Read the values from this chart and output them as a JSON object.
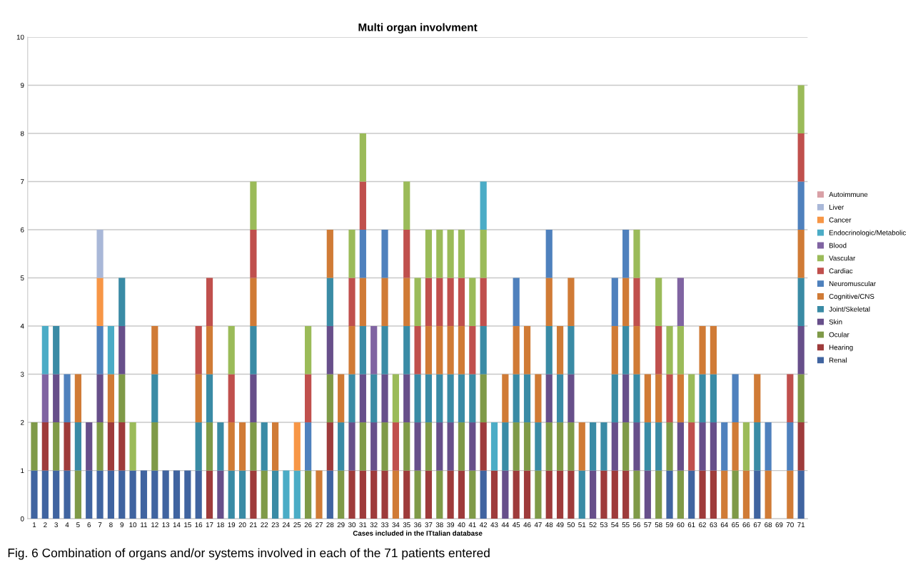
{
  "chart_data": {
    "type": "bar",
    "stacked": true,
    "title": "Multi organ involvment",
    "xlabel": "Cases included in the ITtalian database",
    "categories": [
      "1",
      "2",
      "3",
      "4",
      "5",
      "6",
      "7",
      "8",
      "9",
      "10",
      "11",
      "12",
      "13",
      "14",
      "15",
      "16",
      "17",
      "18",
      "19",
      "20",
      "21",
      "22",
      "23",
      "24",
      "25",
      "26",
      "27",
      "28",
      "29",
      "30",
      "31",
      "32",
      "33",
      "34",
      "35",
      "36",
      "37",
      "38",
      "39",
      "40",
      "41",
      "42",
      "43",
      "44",
      "45",
      "46",
      "47",
      "48",
      "49",
      "50",
      "51",
      "52",
      "53",
      "54",
      "55",
      "56",
      "57",
      "58",
      "59",
      "60",
      "61",
      "62",
      "63",
      "64",
      "65",
      "66",
      "67",
      "68",
      "69",
      "70",
      "71"
    ],
    "ylim": [
      0,
      10
    ],
    "yticks": [
      0,
      1,
      2,
      3,
      4,
      5,
      6,
      7,
      8,
      9,
      10
    ],
    "grid": "y",
    "legend": "right",
    "series": [
      {
        "name": "Renal",
        "color": "#4064a0",
        "values": [
          1,
          1,
          1,
          1,
          0,
          1,
          1,
          1,
          1,
          1,
          1,
          1,
          1,
          1,
          1,
          1,
          0,
          0,
          0,
          0,
          0,
          0,
          0,
          0,
          0,
          0,
          0,
          1,
          0,
          0,
          0,
          0,
          0,
          0,
          0,
          0,
          0,
          0,
          0,
          0,
          0,
          1,
          0,
          0,
          0,
          0,
          0,
          0,
          0,
          0,
          0,
          0,
          0,
          0,
          0,
          0,
          0,
          0,
          1,
          0,
          1,
          0,
          0,
          0,
          0,
          0,
          1,
          0,
          0,
          0,
          1
        ]
      },
      {
        "name": "Hearing",
        "color": "#9e3b3b",
        "values": [
          0,
          1,
          0,
          1,
          0,
          0,
          0,
          1,
          1,
          0,
          0,
          0,
          0,
          0,
          0,
          0,
          1,
          0,
          0,
          0,
          1,
          0,
          0,
          0,
          0,
          0,
          0,
          1,
          0,
          1,
          1,
          1,
          1,
          0,
          1,
          0,
          1,
          0,
          1,
          1,
          0,
          1,
          1,
          0,
          1,
          1,
          0,
          1,
          1,
          1,
          0,
          0,
          1,
          1,
          1,
          0,
          0,
          0,
          0,
          0,
          0,
          1,
          1,
          0,
          0,
          0,
          0,
          0,
          0,
          0,
          1
        ]
      },
      {
        "name": "Ocular",
        "color": "#7f9a48",
        "values": [
          1,
          0,
          1,
          0,
          1,
          0,
          1,
          0,
          1,
          0,
          0,
          1,
          0,
          0,
          0,
          0,
          1,
          0,
          0,
          0,
          1,
          1,
          0,
          0,
          0,
          1,
          0,
          1,
          1,
          0,
          1,
          0,
          1,
          0,
          1,
          1,
          1,
          1,
          0,
          1,
          1,
          1,
          0,
          0,
          1,
          1,
          1,
          1,
          1,
          1,
          0,
          0,
          0,
          0,
          1,
          1,
          0,
          1,
          1,
          1,
          0,
          0,
          0,
          0,
          1,
          0,
          0,
          0,
          0,
          0,
          1
        ]
      },
      {
        "name": "Skin",
        "color": "#674f8a",
        "values": [
          0,
          0,
          1,
          0,
          0,
          1,
          1,
          0,
          1,
          0,
          0,
          0,
          0,
          0,
          0,
          0,
          0,
          1,
          0,
          0,
          1,
          0,
          0,
          0,
          0,
          0,
          0,
          1,
          0,
          1,
          1,
          1,
          1,
          0,
          1,
          1,
          0,
          1,
          1,
          0,
          1,
          0,
          0,
          1,
          0,
          0,
          0,
          1,
          0,
          1,
          0,
          1,
          0,
          1,
          1,
          1,
          1,
          0,
          0,
          1,
          0,
          1,
          1,
          0,
          0,
          0,
          0,
          0,
          0,
          0,
          1
        ]
      },
      {
        "name": "Joint/Skeletal",
        "color": "#3a8ba5",
        "values": [
          0,
          0,
          1,
          0,
          1,
          0,
          0,
          0,
          1,
          0,
          0,
          1,
          0,
          0,
          0,
          1,
          1,
          1,
          1,
          1,
          1,
          1,
          1,
          0,
          0,
          0,
          0,
          1,
          1,
          1,
          1,
          1,
          1,
          0,
          1,
          1,
          1,
          1,
          1,
          1,
          1,
          1,
          0,
          1,
          1,
          1,
          1,
          1,
          1,
          1,
          1,
          1,
          1,
          1,
          1,
          1,
          1,
          1,
          0,
          0,
          0,
          1,
          1,
          0,
          0,
          0,
          1,
          0,
          0,
          0,
          1
        ]
      },
      {
        "name": "Cognitive/CNS",
        "color": "#d07b36",
        "values": [
          0,
          0,
          0,
          0,
          1,
          0,
          0,
          1,
          0,
          0,
          0,
          1,
          0,
          0,
          0,
          1,
          1,
          0,
          1,
          1,
          1,
          0,
          1,
          0,
          0,
          0,
          1,
          1,
          1,
          1,
          1,
          0,
          1,
          1,
          1,
          0,
          1,
          1,
          1,
          1,
          0,
          0,
          0,
          1,
          1,
          1,
          1,
          1,
          1,
          1,
          1,
          0,
          0,
          1,
          1,
          1,
          1,
          1,
          0,
          1,
          0,
          1,
          1,
          1,
          1,
          1,
          1,
          1,
          0,
          1,
          1
        ]
      },
      {
        "name": "Neuromuscular",
        "color": "#4f81bd",
        "values": [
          0,
          0,
          0,
          1,
          0,
          0,
          1,
          0,
          0,
          0,
          0,
          0,
          0,
          0,
          0,
          0,
          0,
          0,
          0,
          0,
          0,
          0,
          0,
          0,
          0,
          1,
          0,
          0,
          0,
          0,
          1,
          0,
          1,
          0,
          0,
          0,
          0,
          0,
          0,
          0,
          0,
          0,
          0,
          0,
          1,
          0,
          0,
          1,
          0,
          0,
          0,
          0,
          0,
          1,
          1,
          0,
          0,
          0,
          0,
          0,
          0,
          0,
          0,
          1,
          1,
          0,
          0,
          1,
          0,
          1,
          1
        ]
      },
      {
        "name": "Cardiac",
        "color": "#c0504d",
        "values": [
          0,
          0,
          0,
          0,
          0,
          0,
          0,
          0,
          0,
          0,
          0,
          0,
          0,
          0,
          0,
          1,
          1,
          0,
          1,
          0,
          1,
          0,
          0,
          0,
          0,
          1,
          0,
          0,
          0,
          1,
          1,
          0,
          0,
          1,
          1,
          1,
          1,
          1,
          1,
          1,
          1,
          1,
          0,
          0,
          0,
          0,
          0,
          0,
          0,
          0,
          0,
          0,
          0,
          0,
          0,
          1,
          0,
          1,
          1,
          0,
          1,
          0,
          0,
          0,
          0,
          0,
          0,
          0,
          0,
          1,
          1
        ]
      },
      {
        "name": "Vascular",
        "color": "#9bbb59",
        "values": [
          0,
          0,
          0,
          0,
          0,
          0,
          0,
          0,
          0,
          1,
          0,
          0,
          0,
          0,
          0,
          0,
          0,
          0,
          1,
          0,
          1,
          0,
          0,
          0,
          0,
          1,
          0,
          0,
          0,
          1,
          1,
          0,
          0,
          1,
          1,
          1,
          1,
          1,
          1,
          1,
          1,
          1,
          0,
          0,
          0,
          0,
          0,
          0,
          0,
          0,
          0,
          0,
          0,
          0,
          0,
          1,
          0,
          1,
          1,
          1,
          1,
          0,
          0,
          0,
          0,
          1,
          0,
          0,
          0,
          0,
          1
        ]
      },
      {
        "name": "Blood",
        "color": "#8064a2",
        "values": [
          0,
          1,
          0,
          0,
          0,
          0,
          0,
          0,
          0,
          0,
          0,
          0,
          0,
          0,
          0,
          0,
          0,
          0,
          0,
          0,
          0,
          0,
          0,
          0,
          0,
          0,
          0,
          0,
          0,
          0,
          0,
          1,
          0,
          0,
          0,
          0,
          0,
          0,
          0,
          0,
          0,
          0,
          0,
          0,
          0,
          0,
          0,
          0,
          0,
          0,
          0,
          0,
          0,
          0,
          0,
          0,
          0,
          0,
          0,
          1,
          0,
          0,
          0,
          0,
          0,
          0,
          0,
          0,
          0,
          0,
          0
        ]
      },
      {
        "name": "Endocrinologic/Metabolic",
        "color": "#4bacc6",
        "values": [
          0,
          1,
          0,
          0,
          0,
          0,
          0,
          1,
          0,
          0,
          0,
          0,
          0,
          0,
          0,
          0,
          0,
          0,
          0,
          0,
          0,
          0,
          0,
          1,
          1,
          0,
          0,
          0,
          0,
          0,
          0,
          0,
          0,
          0,
          0,
          0,
          0,
          0,
          0,
          0,
          0,
          1,
          1,
          0,
          0,
          0,
          0,
          0,
          0,
          0,
          0,
          0,
          0,
          0,
          0,
          0,
          0,
          0,
          0,
          0,
          0,
          0,
          0,
          0,
          0,
          0,
          0,
          0,
          0,
          0,
          0
        ]
      },
      {
        "name": "Cancer",
        "color": "#f79646",
        "values": [
          0,
          0,
          0,
          0,
          0,
          0,
          1,
          0,
          0,
          0,
          0,
          0,
          0,
          0,
          0,
          0,
          0,
          0,
          0,
          0,
          0,
          0,
          0,
          0,
          1,
          0,
          0,
          0,
          0,
          0,
          0,
          0,
          0,
          0,
          0,
          0,
          0,
          0,
          0,
          0,
          0,
          0,
          0,
          0,
          0,
          0,
          0,
          0,
          0,
          0,
          0,
          0,
          0,
          0,
          0,
          0,
          0,
          0,
          0,
          0,
          0,
          0,
          0,
          0,
          0,
          0,
          0,
          0,
          0,
          0,
          0
        ]
      },
      {
        "name": "Liver",
        "color": "#a9b8d8",
        "values": [
          0,
          0,
          0,
          0,
          0,
          0,
          1,
          0,
          0,
          0,
          0,
          0,
          0,
          0,
          0,
          0,
          0,
          0,
          0,
          0,
          0,
          0,
          0,
          0,
          0,
          0,
          0,
          0,
          0,
          0,
          0,
          0,
          0,
          0,
          0,
          0,
          0,
          0,
          0,
          0,
          0,
          0,
          0,
          0,
          0,
          0,
          0,
          0,
          0,
          0,
          0,
          0,
          0,
          0,
          0,
          0,
          0,
          0,
          0,
          0,
          0,
          0,
          0,
          0,
          0,
          0,
          0,
          0,
          0,
          0,
          0
        ]
      },
      {
        "name": "Autoimmune",
        "color": "#d9a0a6",
        "values": [
          0,
          0,
          0,
          0,
          0,
          0,
          0,
          0,
          0,
          0,
          0,
          0,
          0,
          0,
          0,
          0,
          0,
          0,
          0,
          0,
          0,
          0,
          0,
          0,
          0,
          0,
          0,
          0,
          0,
          0,
          0,
          0,
          0,
          0,
          0,
          0,
          0,
          0,
          0,
          0,
          0,
          0,
          0,
          0,
          0,
          0,
          0,
          0,
          0,
          0,
          0,
          0,
          0,
          0,
          0,
          0,
          0,
          0,
          0,
          0,
          0,
          0,
          0,
          0,
          0,
          0,
          0,
          0,
          0,
          0,
          0
        ]
      }
    ],
    "annotations": [
      "Fig. 6 Combination of organs and/or systems involved in each of the 71 patients entered"
    ]
  }
}
